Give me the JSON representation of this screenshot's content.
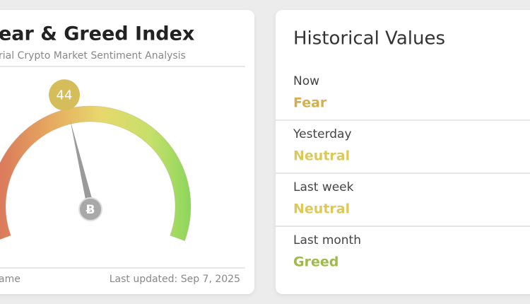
{
  "left_card": {
    "title": "ear & Greed Index",
    "subtitle": "rial Crypto Market Sentiment Analysis",
    "gauge": {
      "value": 44,
      "range": [
        0,
        100
      ]
    },
    "footer_left": "ame",
    "footer_right": "Last updated: Sep 7, 2025"
  },
  "historical": {
    "title": "Historical Values",
    "rows": [
      {
        "label": "Now",
        "value": "Fear",
        "color": "#d3b04e"
      },
      {
        "label": "Yesterday",
        "value": "Neutral",
        "color": "#dcc95a"
      },
      {
        "label": "Last week",
        "value": "Neutral",
        "color": "#dcc95a"
      },
      {
        "label": "Last month",
        "value": "Greed",
        "color": "#9fba4a"
      }
    ]
  }
}
